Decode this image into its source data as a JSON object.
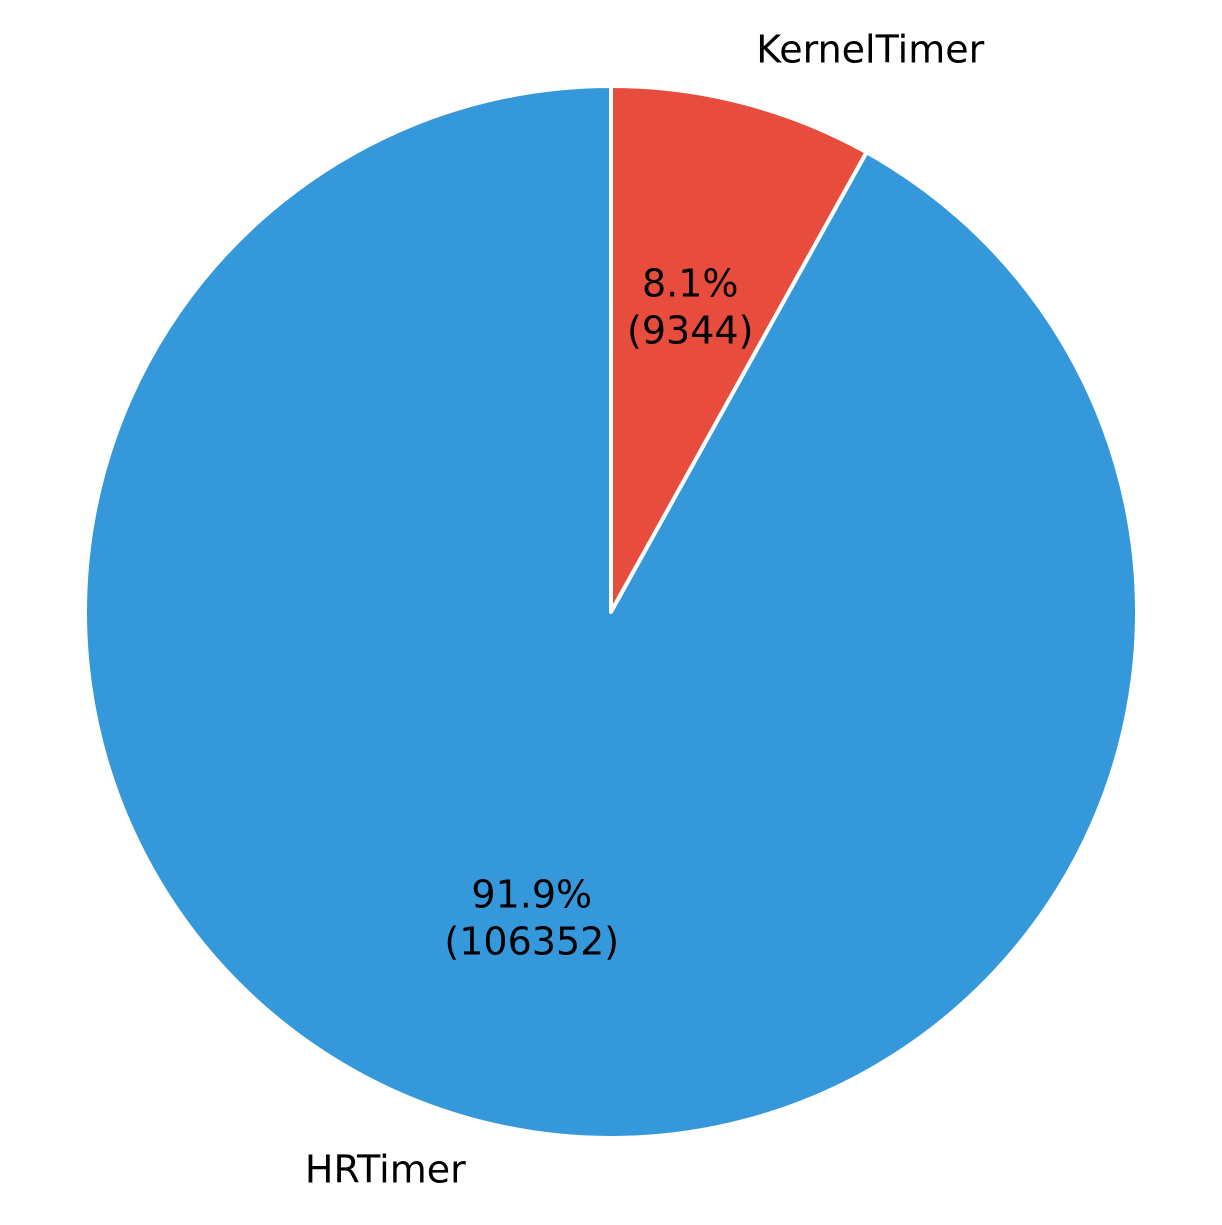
{
  "chart_data": {
    "type": "pie",
    "title": "",
    "start_angle_deg": 90,
    "direction": "clockwise",
    "legend": "none",
    "slices": [
      {
        "label": "KernelTimer",
        "value": 9344,
        "percent_text": "8.1%",
        "value_text": "(9344)",
        "color": "#e74c3c"
      },
      {
        "label": "HRTimer",
        "value": 106352,
        "percent_text": "91.9%",
        "value_text": "(106352)",
        "color": "#3498db"
      }
    ]
  }
}
